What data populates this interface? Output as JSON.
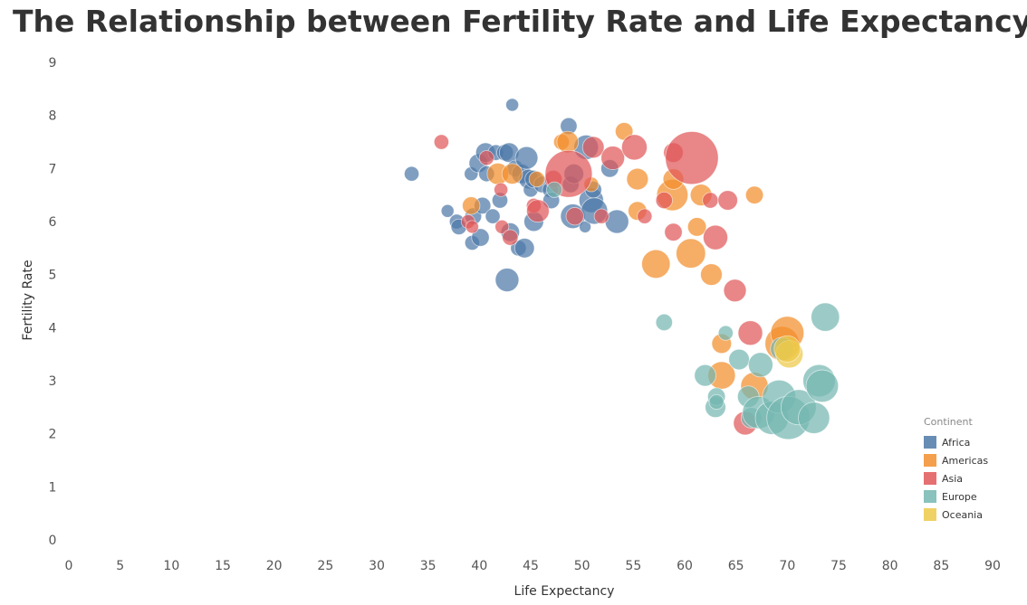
{
  "chart_data": {
    "type": "scatter",
    "title": "The Relationship between Fertility Rate and Life Expectancy?",
    "xlabel": "Life Expectancy",
    "ylabel": "Fertility Rate",
    "xlim": [
      0,
      90
    ],
    "ylim": [
      0,
      9
    ],
    "xticks": [
      0,
      5,
      10,
      15,
      20,
      25,
      30,
      35,
      40,
      45,
      50,
      55,
      60,
      65,
      70,
      75,
      80,
      85,
      90
    ],
    "yticks": [
      0,
      1,
      2,
      3,
      4,
      5,
      6,
      7,
      8,
      9
    ],
    "grid": false,
    "legend": {
      "title": "Continent",
      "position": "right",
      "entries": [
        {
          "name": "Africa",
          "color": "#4e79a7"
        },
        {
          "name": "Americas",
          "color": "#f28e2b"
        },
        {
          "name": "Asia",
          "color": "#e15759"
        },
        {
          "name": "Europe",
          "color": "#76b7b2"
        },
        {
          "name": "Oceania",
          "color": "#edc948"
        }
      ]
    },
    "series": [
      {
        "name": "Africa",
        "color": "#4e79a7",
        "points": [
          [
            33.4,
            6.9,
            1.5
          ],
          [
            36.9,
            6.2,
            1.3
          ],
          [
            37.8,
            6.0,
            1.5
          ],
          [
            38.0,
            5.9,
            1.6
          ],
          [
            39.2,
            6.9,
            1.4
          ],
          [
            39.3,
            5.6,
            1.5
          ],
          [
            39.4,
            6.1,
            1.7
          ],
          [
            39.9,
            7.1,
            1.9
          ],
          [
            40.1,
            5.7,
            1.8
          ],
          [
            40.3,
            6.3,
            1.7
          ],
          [
            40.6,
            7.3,
            2.0
          ],
          [
            40.7,
            6.9,
            1.6
          ],
          [
            41.3,
            6.1,
            1.5
          ],
          [
            41.6,
            7.3,
            1.6
          ],
          [
            42.0,
            6.4,
            1.6
          ],
          [
            42.5,
            7.3,
            1.7
          ],
          [
            42.7,
            4.9,
            2.4
          ],
          [
            42.9,
            7.3,
            2.0
          ],
          [
            43.0,
            5.8,
            1.9
          ],
          [
            43.2,
            8.2,
            1.3
          ],
          [
            43.5,
            7.0,
            1.7
          ],
          [
            43.8,
            5.5,
            1.6
          ],
          [
            44.1,
            6.9,
            2.0
          ],
          [
            44.4,
            5.5,
            2.0
          ],
          [
            44.6,
            7.2,
            2.3
          ],
          [
            44.8,
            6.8,
            2.0
          ],
          [
            45.0,
            6.6,
            1.5
          ],
          [
            45.3,
            6.0,
            2.0
          ],
          [
            45.3,
            6.8,
            1.8
          ],
          [
            46.1,
            6.7,
            1.7
          ],
          [
            46.9,
            6.6,
            1.6
          ],
          [
            47.0,
            6.4,
            1.7
          ],
          [
            48.7,
            7.8,
            1.7
          ],
          [
            48.9,
            6.7,
            1.7
          ],
          [
            49.1,
            6.1,
            2.5
          ],
          [
            49.2,
            6.9,
            2.0
          ],
          [
            50.3,
            5.9,
            1.2
          ],
          [
            50.4,
            7.4,
            2.5
          ],
          [
            50.9,
            6.4,
            2.5
          ],
          [
            51.1,
            6.6,
            1.7
          ],
          [
            51.2,
            6.2,
            2.7
          ],
          [
            52.7,
            7.0,
            1.8
          ],
          [
            53.4,
            6.0,
            2.4
          ]
        ]
      },
      {
        "name": "Americas",
        "color": "#f28e2b",
        "points": [
          [
            39.2,
            6.3,
            1.8
          ],
          [
            41.8,
            6.9,
            2.2
          ],
          [
            43.2,
            6.9,
            2.1
          ],
          [
            45.6,
            6.8,
            1.6
          ],
          [
            48.0,
            7.5,
            1.6
          ],
          [
            48.6,
            7.5,
            2.2
          ],
          [
            50.9,
            6.7,
            1.5
          ],
          [
            54.1,
            7.7,
            1.8
          ],
          [
            55.4,
            6.8,
            2.2
          ],
          [
            55.4,
            6.2,
            1.9
          ],
          [
            57.2,
            5.2,
            2.9
          ],
          [
            58.8,
            6.5,
            3.2
          ],
          [
            58.9,
            6.8,
            2.1
          ],
          [
            60.6,
            5.4,
            3.0
          ],
          [
            61.2,
            5.9,
            1.9
          ],
          [
            61.6,
            6.5,
            2.2
          ],
          [
            62.6,
            5.0,
            2.2
          ],
          [
            63.6,
            3.7,
            2.0
          ],
          [
            63.6,
            3.1,
            2.8
          ],
          [
            66.8,
            2.9,
            2.8
          ],
          [
            66.8,
            6.5,
            1.8
          ],
          [
            69.5,
            3.7,
            3.5
          ],
          [
            70.0,
            3.9,
            3.4
          ]
        ]
      },
      {
        "name": "Asia",
        "color": "#e15759",
        "points": [
          [
            36.3,
            7.5,
            1.5
          ],
          [
            38.9,
            6.0,
            1.4
          ],
          [
            39.3,
            5.9,
            1.3
          ],
          [
            40.7,
            7.2,
            1.5
          ],
          [
            42.1,
            6.6,
            1.4
          ],
          [
            42.2,
            5.9,
            1.4
          ],
          [
            43.0,
            5.7,
            1.6
          ],
          [
            45.3,
            6.3,
            1.5
          ],
          [
            45.7,
            6.2,
            2.3
          ],
          [
            47.2,
            6.8,
            1.8
          ],
          [
            48.7,
            6.9,
            4.8
          ],
          [
            49.3,
            6.1,
            1.8
          ],
          [
            51.1,
            7.4,
            2.2
          ],
          [
            51.9,
            6.1,
            1.5
          ],
          [
            53.0,
            7.2,
            2.4
          ],
          [
            55.1,
            7.4,
            2.6
          ],
          [
            56.1,
            6.1,
            1.5
          ],
          [
            58.0,
            6.4,
            1.7
          ],
          [
            58.9,
            7.3,
            2.0
          ],
          [
            58.9,
            5.8,
            1.8
          ],
          [
            60.7,
            7.2,
            5.4
          ],
          [
            62.5,
            6.4,
            1.6
          ],
          [
            63.0,
            5.7,
            2.5
          ],
          [
            64.2,
            6.4,
            2.0
          ],
          [
            64.9,
            4.7,
            2.3
          ],
          [
            65.9,
            2.2,
            2.4
          ],
          [
            66.4,
            3.9,
            2.5
          ]
        ]
      },
      {
        "name": "Europe",
        "color": "#76b7b2",
        "points": [
          [
            47.3,
            6.6,
            1.6
          ],
          [
            58.0,
            4.1,
            1.7
          ],
          [
            62.0,
            3.1,
            2.2
          ],
          [
            63.0,
            2.5,
            2.1
          ],
          [
            63.1,
            2.7,
            1.8
          ],
          [
            63.1,
            2.6,
            1.5
          ],
          [
            64.0,
            3.9,
            1.5
          ],
          [
            65.3,
            3.4,
            2.1
          ],
          [
            66.2,
            2.7,
            2.2
          ],
          [
            66.5,
            2.3,
            2.1
          ],
          [
            67.2,
            2.4,
            3.3
          ],
          [
            67.4,
            3.3,
            2.5
          ],
          [
            68.5,
            2.3,
            3.4
          ],
          [
            69.2,
            2.7,
            3.4
          ],
          [
            69.5,
            3.6,
            2.4
          ],
          [
            70.1,
            2.3,
            4.4
          ],
          [
            71.1,
            2.5,
            3.6
          ],
          [
            72.6,
            2.3,
            3.2
          ],
          [
            73.1,
            3.0,
            3.3
          ],
          [
            73.4,
            2.9,
            3.3
          ],
          [
            73.7,
            4.2,
            2.9
          ]
        ]
      },
      {
        "name": "Oceania",
        "color": "#edc948",
        "points": [
          [
            70.2,
            3.5,
            2.8
          ],
          [
            70.0,
            3.6,
            2.7
          ]
        ]
      }
    ]
  }
}
